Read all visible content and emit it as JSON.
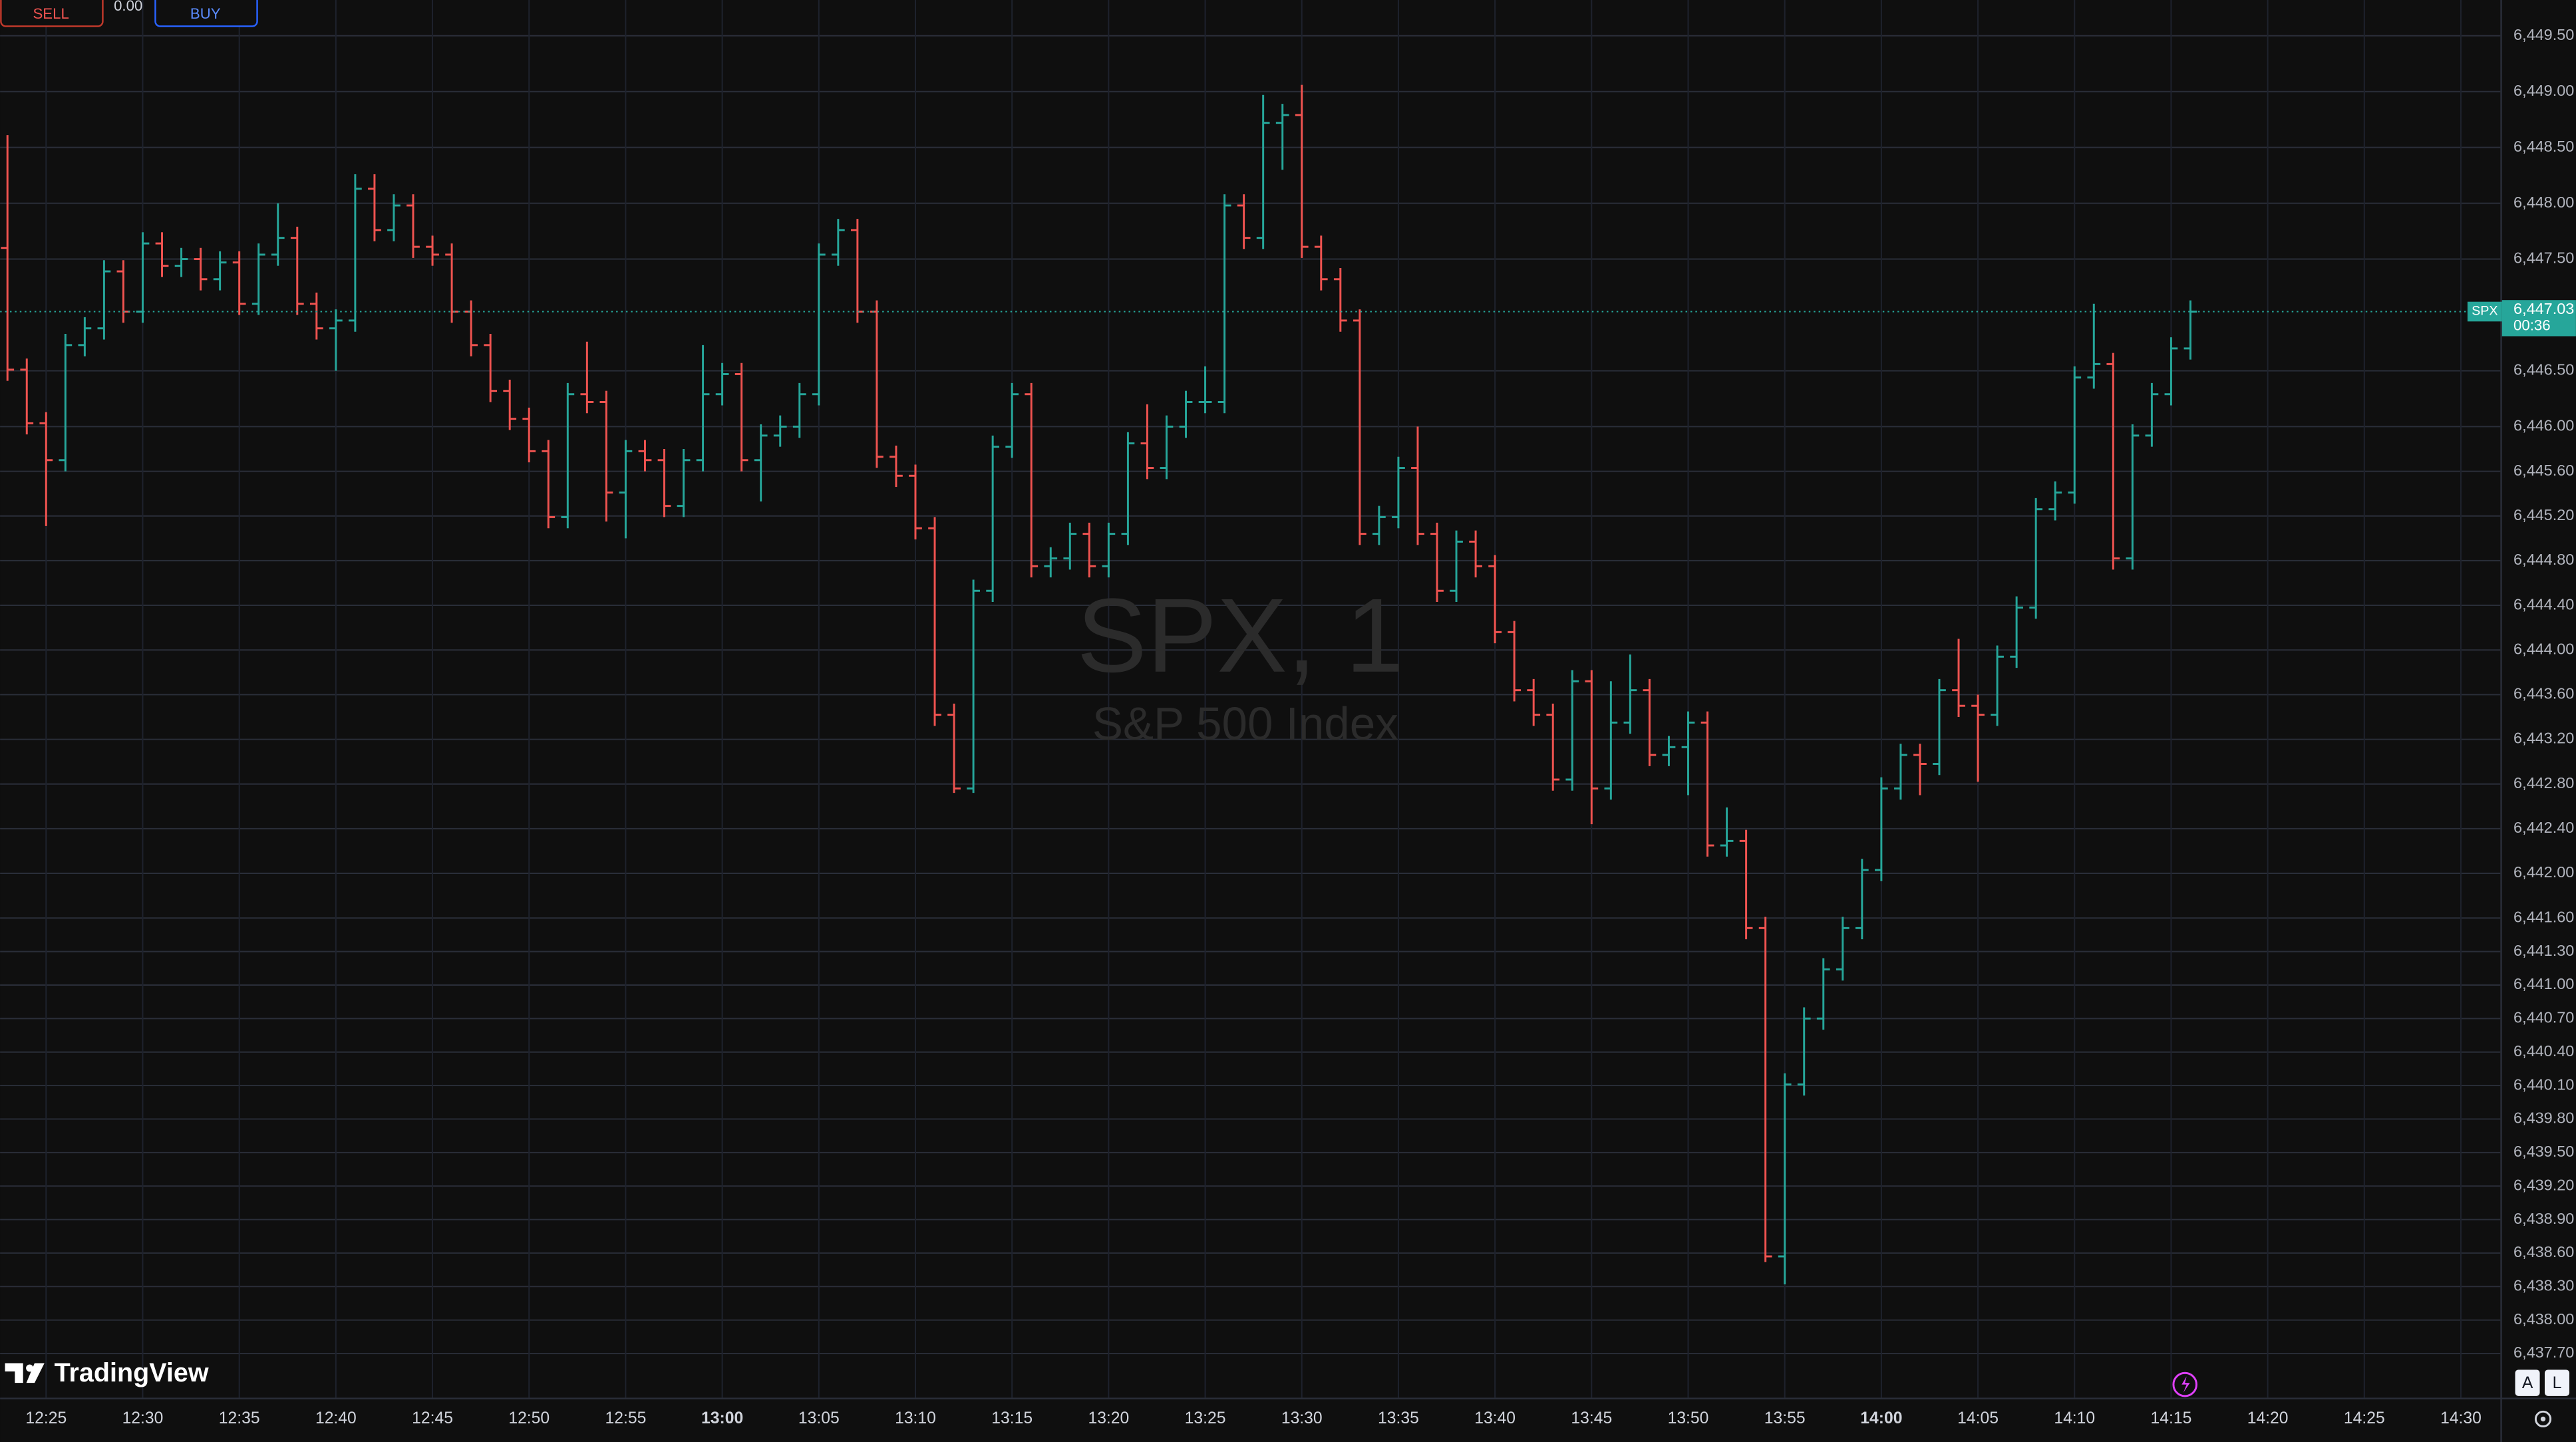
{
  "chart_data": {
    "type": "ohlc",
    "title": "SPX, 1",
    "subtitle": "S&P 500 Index",
    "x": [
      "12:23",
      "12:24",
      "12:25",
      "12:26",
      "12:27",
      "12:28",
      "12:29",
      "12:30",
      "12:31",
      "12:32",
      "12:33",
      "12:34",
      "12:35",
      "12:36",
      "12:37",
      "12:38",
      "12:39",
      "12:40",
      "12:41",
      "12:42",
      "12:43",
      "12:44",
      "12:45",
      "12:46",
      "12:47",
      "12:48",
      "12:49",
      "12:50",
      "12:51",
      "12:52",
      "12:53",
      "12:54",
      "12:55",
      "12:56",
      "12:57",
      "12:58",
      "12:59",
      "13:00",
      "13:01",
      "13:02",
      "13:03",
      "13:04",
      "13:05",
      "13:06",
      "13:07",
      "13:08",
      "13:09",
      "13:10",
      "13:11",
      "13:12",
      "13:13",
      "13:14",
      "13:15",
      "13:16",
      "13:17",
      "13:18",
      "13:19",
      "13:20",
      "13:21",
      "13:22",
      "13:23",
      "13:24",
      "13:25",
      "13:26",
      "13:27",
      "13:28",
      "13:29",
      "13:30",
      "13:31",
      "13:32",
      "13:33",
      "13:34",
      "13:35",
      "13:36",
      "13:37",
      "13:38",
      "13:39",
      "13:40",
      "13:41",
      "13:42",
      "13:43",
      "13:44",
      "13:45",
      "13:46",
      "13:47",
      "13:48",
      "13:49",
      "13:50",
      "13:51",
      "13:52",
      "13:53",
      "13:54",
      "13:55",
      "13:56",
      "13:57",
      "13:58",
      "13:59",
      "14:00",
      "14:01",
      "14:02",
      "14:03",
      "14:04",
      "14:05",
      "14:06",
      "14:07",
      "14:08",
      "14:09",
      "14:10",
      "14:11",
      "14:12",
      "14:13",
      "14:14",
      "14:15",
      "14:16"
    ],
    "series": [
      {
        "name": "SPX",
        "up_color": "#26a69a",
        "down_color": "#ef5350",
        "open": [
          6447.6,
          6446.51,
          6446.03,
          6445.7,
          6446.73,
          6446.88,
          6447.39,
          6447.03,
          6447.64,
          6447.44,
          6447.5,
          6447.32,
          6447.47,
          6447.1,
          6447.54,
          6447.69,
          6447.1,
          6446.88,
          6446.95,
          6448.13,
          6447.76,
          6447.98,
          6447.61,
          6447.54,
          6447.03,
          6446.73,
          6446.32,
          6446.07,
          6445.78,
          6445.19,
          6446.29,
          6446.22,
          6445.41,
          6445.78,
          6445.7,
          6445.29,
          6445.7,
          6446.29,
          6446.47,
          6445.7,
          6445.92,
          6446.0,
          6446.29,
          6447.54,
          6447.76,
          6447.03,
          6445.73,
          6445.56,
          6445.09,
          6443.42,
          6442.76,
          6444.53,
          6445.82,
          6446.29,
          6444.75,
          6444.82,
          6445.04,
          6444.75,
          6445.04,
          6445.85,
          6445.63,
          6446.0,
          6446.22,
          6446.22,
          6447.98,
          6447.69,
          6448.72,
          6448.79,
          6447.61,
          6447.32,
          6446.95,
          6445.04,
          6445.19,
          6445.63,
          6445.04,
          6444.53,
          6444.97,
          6444.75,
          6444.16,
          6443.64,
          6443.42,
          6442.84,
          6443.72,
          6442.76,
          6443.35,
          6443.64,
          6443.06,
          6443.13,
          6443.35,
          6442.25,
          6442.29,
          6441.51,
          6438.57,
          6440.11,
          6440.7,
          6441.14,
          6441.51,
          6442.03,
          6442.76,
          6443.06,
          6442.98,
          6443.64,
          6443.5,
          6443.42,
          6443.94,
          6444.38,
          6445.26,
          6445.41,
          6446.44,
          6446.56,
          6444.82,
          6445.92,
          6446.29,
          6446.7
        ],
        "high": [
          6448.61,
          6446.61,
          6446.13,
          6446.83,
          6446.98,
          6447.49,
          6447.49,
          6447.74,
          6447.74,
          6447.6,
          6447.6,
          6447.57,
          6447.57,
          6447.64,
          6448.0,
          6447.79,
          6447.2,
          6447.05,
          6448.26,
          6448.26,
          6448.08,
          6448.08,
          6447.71,
          6447.64,
          6447.13,
          6446.83,
          6446.42,
          6446.17,
          6445.88,
          6446.39,
          6446.76,
          6446.32,
          6445.88,
          6445.88,
          6445.8,
          6445.8,
          6446.73,
          6446.57,
          6446.57,
          6446.02,
          6446.1,
          6446.39,
          6447.64,
          6447.86,
          6447.86,
          6447.13,
          6445.83,
          6445.66,
          6445.19,
          6443.52,
          6444.63,
          6445.92,
          6446.39,
          6446.39,
          6444.92,
          6445.14,
          6445.14,
          6445.14,
          6445.95,
          6446.2,
          6446.1,
          6446.32,
          6446.54,
          6448.08,
          6448.08,
          6448.97,
          6448.89,
          6449.06,
          6447.71,
          6447.42,
          6447.05,
          6445.29,
          6445.73,
          6446.0,
          6445.14,
          6445.07,
          6445.07,
          6444.85,
          6444.26,
          6443.74,
          6443.52,
          6443.82,
          6443.82,
          6443.72,
          6443.96,
          6443.74,
          6443.23,
          6443.45,
          6443.45,
          6442.59,
          6442.39,
          6441.61,
          6440.21,
          6440.8,
          6441.24,
          6441.61,
          6442.13,
          6442.86,
          6443.16,
          6443.16,
          6443.74,
          6444.1,
          6443.6,
          6444.04,
          6444.48,
          6445.36,
          6445.51,
          6446.54,
          6447.1,
          6446.66,
          6446.02,
          6446.39,
          6446.8,
          6447.13
        ],
        "low": [
          6446.41,
          6445.93,
          6445.11,
          6445.6,
          6446.63,
          6446.78,
          6446.93,
          6446.93,
          6447.34,
          6447.34,
          6447.22,
          6447.22,
          6447.0,
          6447.0,
          6447.44,
          6447.0,
          6446.78,
          6446.5,
          6446.85,
          6447.66,
          6447.66,
          6447.51,
          6447.44,
          6446.93,
          6446.63,
          6446.22,
          6445.97,
          6445.68,
          6445.09,
          6445.09,
          6446.12,
          6445.15,
          6445.0,
          6445.6,
          6445.19,
          6445.19,
          6445.6,
          6446.19,
          6445.6,
          6445.33,
          6445.82,
          6445.9,
          6446.19,
          6447.44,
          6446.93,
          6445.63,
          6445.46,
          6444.99,
          6443.32,
          6442.72,
          6442.72,
          6444.43,
          6445.72,
          6444.65,
          6444.65,
          6444.72,
          6444.65,
          6444.65,
          6444.94,
          6445.53,
          6445.53,
          6445.9,
          6446.12,
          6446.12,
          6447.59,
          6447.59,
          6448.3,
          6447.51,
          6447.22,
          6446.85,
          6444.94,
          6444.94,
          6445.09,
          6444.94,
          6444.43,
          6444.43,
          6444.65,
          6444.06,
          6443.54,
          6443.32,
          6442.74,
          6442.74,
          6442.44,
          6442.66,
          6443.25,
          6442.96,
          6442.96,
          6442.7,
          6442.15,
          6442.15,
          6441.41,
          6438.52,
          6438.32,
          6440.01,
          6440.6,
          6441.04,
          6441.41,
          6441.93,
          6442.66,
          6442.7,
          6442.88,
          6443.4,
          6442.82,
          6443.32,
          6443.84,
          6444.28,
          6445.16,
          6445.31,
          6446.34,
          6444.72,
          6444.72,
          6445.82,
          6446.19,
          6446.6
        ],
        "close": [
          6446.51,
          6446.03,
          6445.7,
          6446.73,
          6446.88,
          6447.39,
          6447.03,
          6447.64,
          6447.44,
          6447.5,
          6447.32,
          6447.47,
          6447.1,
          6447.54,
          6447.69,
          6447.1,
          6446.88,
          6446.95,
          6448.13,
          6447.76,
          6447.98,
          6447.61,
          6447.54,
          6447.03,
          6446.73,
          6446.32,
          6446.07,
          6445.78,
          6445.19,
          6446.29,
          6446.22,
          6445.41,
          6445.78,
          6445.7,
          6445.29,
          6445.7,
          6446.29,
          6446.47,
          6445.7,
          6445.92,
          6446.0,
          6446.29,
          6447.54,
          6447.76,
          6447.03,
          6445.73,
          6445.56,
          6445.09,
          6443.42,
          6442.76,
          6444.53,
          6445.82,
          6446.29,
          6444.75,
          6444.82,
          6445.04,
          6444.75,
          6445.04,
          6445.85,
          6445.63,
          6446.0,
          6446.22,
          6446.22,
          6447.98,
          6447.69,
          6448.72,
          6448.79,
          6447.61,
          6447.32,
          6446.95,
          6445.04,
          6445.19,
          6445.63,
          6445.04,
          6444.53,
          6444.97,
          6444.75,
          6444.16,
          6443.64,
          6443.42,
          6442.84,
          6443.72,
          6442.76,
          6443.35,
          6443.64,
          6443.06,
          6443.13,
          6443.35,
          6442.25,
          6442.29,
          6441.51,
          6438.57,
          6440.11,
          6440.7,
          6441.14,
          6441.51,
          6442.03,
          6442.76,
          6443.06,
          6442.98,
          6443.64,
          6443.5,
          6443.42,
          6443.94,
          6444.38,
          6445.26,
          6445.41,
          6446.44,
          6446.56,
          6444.82,
          6445.92,
          6446.29,
          6446.7,
          6447.03
        ]
      }
    ],
    "xlim": [
      "12:23",
      "14:32"
    ],
    "xticks": [
      "12:25",
      "12:30",
      "12:35",
      "12:40",
      "12:45",
      "12:50",
      "12:55",
      "13:00",
      "13:05",
      "13:10",
      "13:15",
      "13:20",
      "13:25",
      "13:30",
      "13:35",
      "13:40",
      "13:45",
      "13:50",
      "13:55",
      "14:00",
      "14:05",
      "14:10",
      "14:15",
      "14:20",
      "14:25",
      "14:30"
    ],
    "ylim": [
      6437.32,
      6449.82
    ],
    "yticks": [
      {
        "value": 6449.5,
        "label": "6,449.50"
      },
      {
        "value": 6449.0,
        "label": "6,449.00"
      },
      {
        "value": 6448.5,
        "label": "6,448.50"
      },
      {
        "value": 6448.0,
        "label": "6,448.00"
      },
      {
        "value": 6447.5,
        "label": "6,447.50"
      },
      {
        "value": 6446.5,
        "label": "6,446.50"
      },
      {
        "value": 6446.0,
        "label": "6,446.00"
      },
      {
        "value": 6445.6,
        "label": "6,445.60"
      },
      {
        "value": 6445.2,
        "label": "6,445.20"
      },
      {
        "value": 6444.8,
        "label": "6,444.80"
      },
      {
        "value": 6444.4,
        "label": "6,444.40"
      },
      {
        "value": 6444.0,
        "label": "6,444.00"
      },
      {
        "value": 6443.6,
        "label": "6,443.60"
      },
      {
        "value": 6443.2,
        "label": "6,443.20"
      },
      {
        "value": 6442.8,
        "label": "6,442.80"
      },
      {
        "value": 6442.4,
        "label": "6,442.40"
      },
      {
        "value": 6442.0,
        "label": "6,442.00"
      },
      {
        "value": 6441.6,
        "label": "6,441.60"
      },
      {
        "value": 6441.3,
        "label": "6,441.30"
      },
      {
        "value": 6441.0,
        "label": "6,441.00"
      },
      {
        "value": 6440.7,
        "label": "6,440.70"
      },
      {
        "value": 6440.4,
        "label": "6,440.40"
      },
      {
        "value": 6440.1,
        "label": "6,440.10"
      },
      {
        "value": 6439.8,
        "label": "6,439.80"
      },
      {
        "value": 6439.5,
        "label": "6,439.50"
      },
      {
        "value": 6439.2,
        "label": "6,439.20"
      },
      {
        "value": 6438.9,
        "label": "6,438.90"
      },
      {
        "value": 6438.6,
        "label": "6,438.60"
      },
      {
        "value": 6438.3,
        "label": "6,438.30"
      },
      {
        "value": 6438.0,
        "label": "6,438.00"
      },
      {
        "value": 6437.7,
        "label": "6,437.70"
      }
    ],
    "grid": true,
    "last_price": {
      "value": 6447.03,
      "label": "6,447.03",
      "countdown": "00:36"
    }
  },
  "toolbar": {
    "sell": "SELL",
    "spread": "0.00",
    "buy": "BUY"
  },
  "branding": "TradingView",
  "scale_buttons": [
    "A",
    "L"
  ]
}
